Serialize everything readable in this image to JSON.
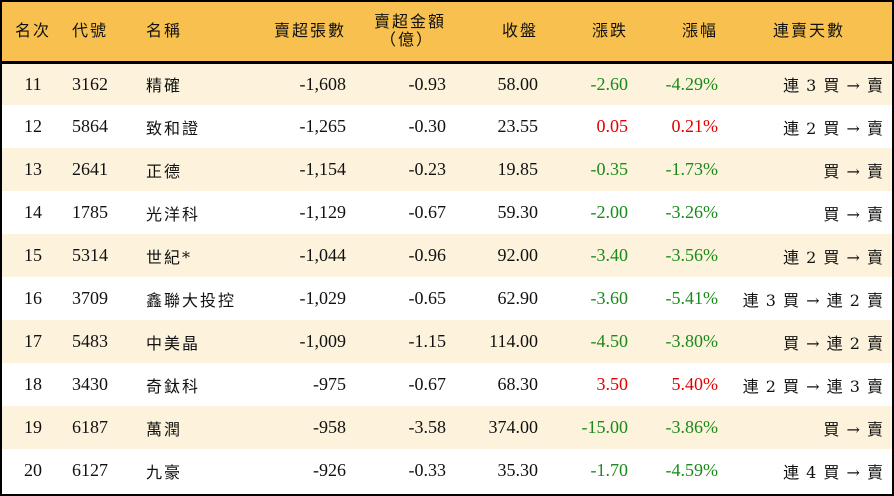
{
  "table": {
    "headers": {
      "rank": "名次",
      "code": "代號",
      "name": "名稱",
      "net_sell_lots": "賣超張數",
      "net_sell_amount_line1": "賣超金額",
      "net_sell_amount_line2": "（億）",
      "close": "收盤",
      "change": "漲跌",
      "change_pct": "漲幅",
      "streak": "連賣天數"
    },
    "colors": {
      "header_bg": "#f8c04e",
      "row_odd_bg": "#fdf3dc",
      "row_even_bg": "#ffffff",
      "up": "#e30000",
      "down": "#1a8a1a"
    },
    "rows": [
      {
        "rank": "11",
        "code": "3162",
        "name": "精確",
        "lots": "-1,608",
        "amount": "-0.93",
        "close": "58.00",
        "change": "-2.60",
        "pct": "-4.29%",
        "dir": "down",
        "streak": "連 3 買 → 賣"
      },
      {
        "rank": "12",
        "code": "5864",
        "name": "致和證",
        "lots": "-1,265",
        "amount": "-0.30",
        "close": "23.55",
        "change": "0.05",
        "pct": "0.21%",
        "dir": "up",
        "streak": "連 2 買 → 賣"
      },
      {
        "rank": "13",
        "code": "2641",
        "name": "正德",
        "lots": "-1,154",
        "amount": "-0.23",
        "close": "19.85",
        "change": "-0.35",
        "pct": "-1.73%",
        "dir": "down",
        "streak": "買 → 賣"
      },
      {
        "rank": "14",
        "code": "1785",
        "name": "光洋科",
        "lots": "-1,129",
        "amount": "-0.67",
        "close": "59.30",
        "change": "-2.00",
        "pct": "-3.26%",
        "dir": "down",
        "streak": "買 → 賣"
      },
      {
        "rank": "15",
        "code": "5314",
        "name": "世紀*",
        "lots": "-1,044",
        "amount": "-0.96",
        "close": "92.00",
        "change": "-3.40",
        "pct": "-3.56%",
        "dir": "down",
        "streak": "連 2 買 → 賣"
      },
      {
        "rank": "16",
        "code": "3709",
        "name": "鑫聯大投控",
        "lots": "-1,029",
        "amount": "-0.65",
        "close": "62.90",
        "change": "-3.60",
        "pct": "-5.41%",
        "dir": "down",
        "streak": "連 3 買 → 連 2 賣"
      },
      {
        "rank": "17",
        "code": "5483",
        "name": "中美晶",
        "lots": "-1,009",
        "amount": "-1.15",
        "close": "114.00",
        "change": "-4.50",
        "pct": "-3.80%",
        "dir": "down",
        "streak": "買 → 連 2 賣"
      },
      {
        "rank": "18",
        "code": "3430",
        "name": "奇鈦科",
        "lots": "-975",
        "amount": "-0.67",
        "close": "68.30",
        "change": "3.50",
        "pct": "5.40%",
        "dir": "up",
        "streak": "連 2 買 → 連 3 賣"
      },
      {
        "rank": "19",
        "code": "6187",
        "name": "萬潤",
        "lots": "-958",
        "amount": "-3.58",
        "close": "374.00",
        "change": "-15.00",
        "pct": "-3.86%",
        "dir": "down",
        "streak": "買 → 賣"
      },
      {
        "rank": "20",
        "code": "6127",
        "name": "九豪",
        "lots": "-926",
        "amount": "-0.33",
        "close": "35.30",
        "change": "-1.70",
        "pct": "-4.59%",
        "dir": "down",
        "streak": "連 4 買 → 賣"
      }
    ]
  }
}
